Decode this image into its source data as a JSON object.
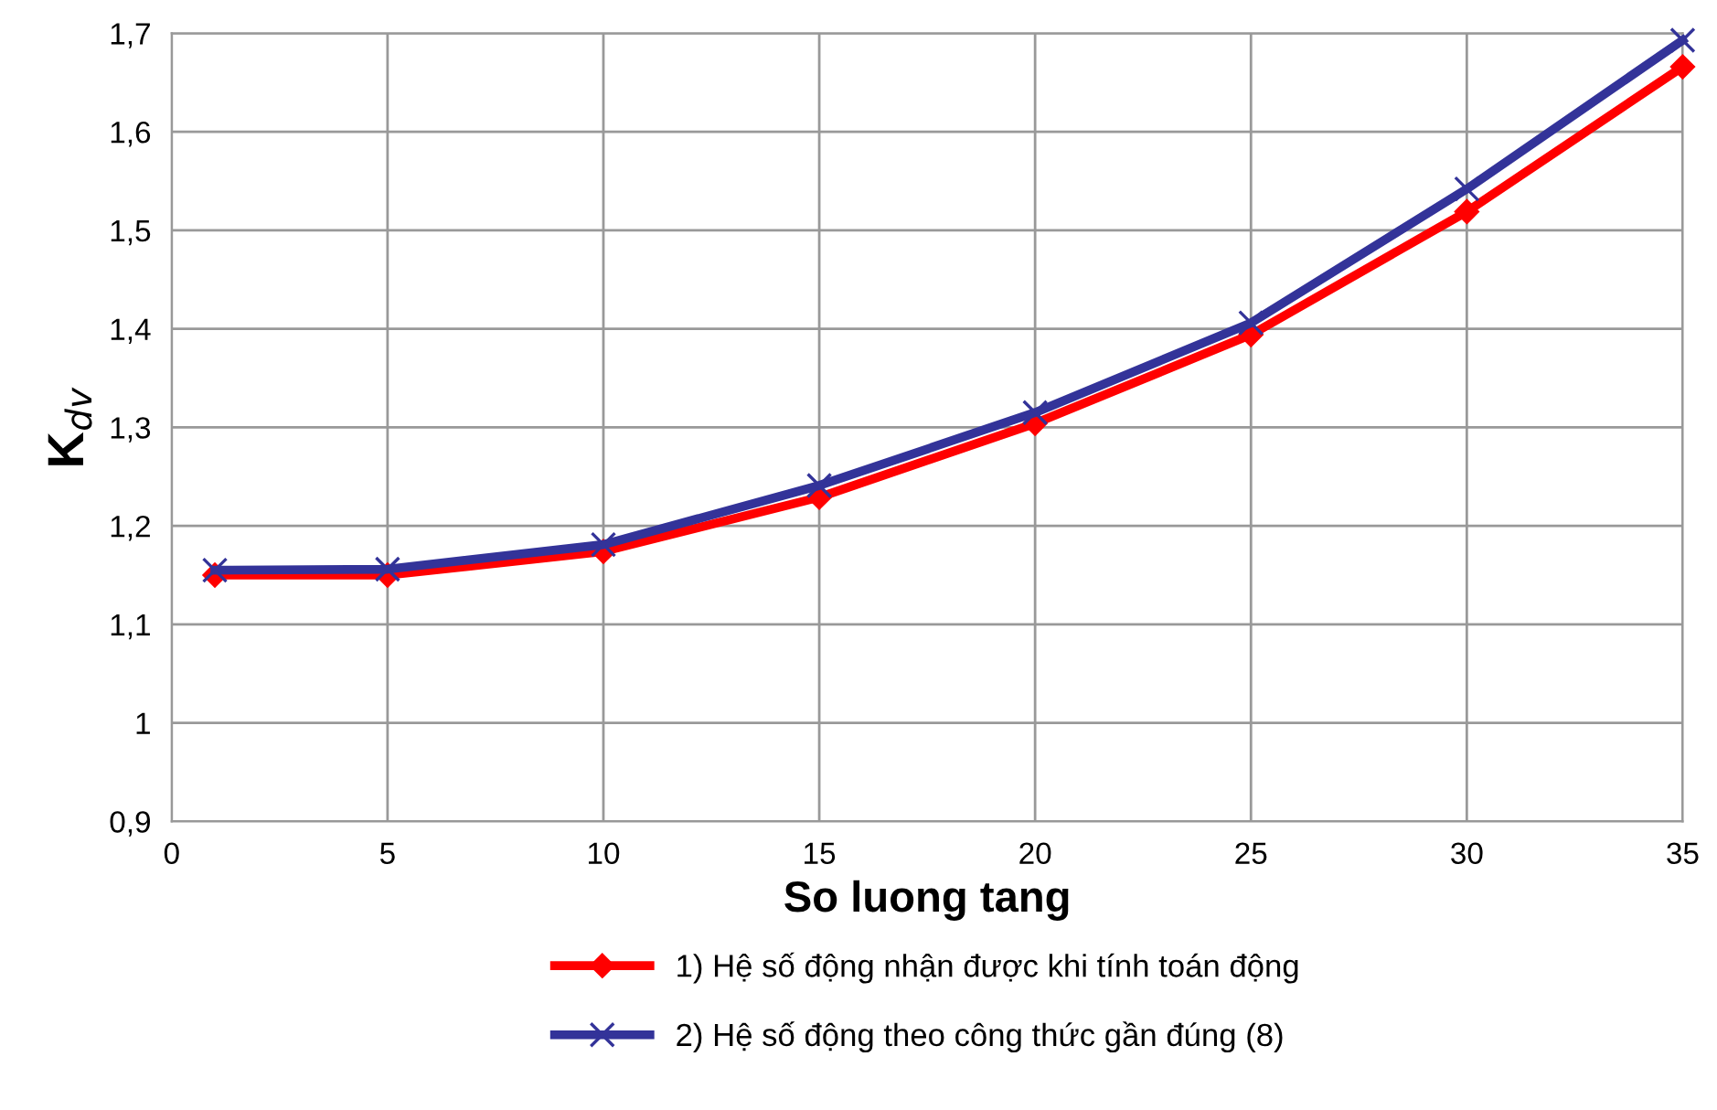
{
  "chart_data": {
    "type": "line",
    "xlabel": "So luong tang",
    "ylabel": "K$_{dv}$",
    "x": [
      1,
      5,
      10,
      15,
      20,
      25,
      30,
      35
    ],
    "series": [
      {
        "name": "1) Hệ số động nhận được khi tính toán động",
        "color": "#ff0000",
        "marker": "diamond",
        "values": [
          1.15,
          1.15,
          1.174,
          1.229,
          1.304,
          1.394,
          1.519,
          1.666
        ]
      },
      {
        "name": "2) Hệ số động theo công thức gần đúng (8)",
        "color": "#333399",
        "marker": "cross",
        "values": [
          1.155,
          1.156,
          1.181,
          1.241,
          1.315,
          1.406,
          1.542,
          1.693
        ]
      }
    ],
    "xlim": [
      0,
      35
    ],
    "xticks": [
      0,
      5,
      10,
      15,
      20,
      25,
      30,
      35
    ],
    "ylim": [
      0.9,
      1.7
    ],
    "yticks": [
      {
        "value": 0.9,
        "label": "0,9"
      },
      {
        "value": 1.0,
        "label": "1"
      },
      {
        "value": 1.1,
        "label": "1,1"
      },
      {
        "value": 1.2,
        "label": "1,2"
      },
      {
        "value": 1.3,
        "label": "1,3"
      },
      {
        "value": 1.4,
        "label": "1,4"
      },
      {
        "value": 1.5,
        "label": "1,5"
      },
      {
        "value": 1.6,
        "label": "1,6"
      },
      {
        "value": 1.7,
        "label": "1,7"
      }
    ],
    "grid": true,
    "legend": "bottom",
    "line_style": "solid"
  }
}
